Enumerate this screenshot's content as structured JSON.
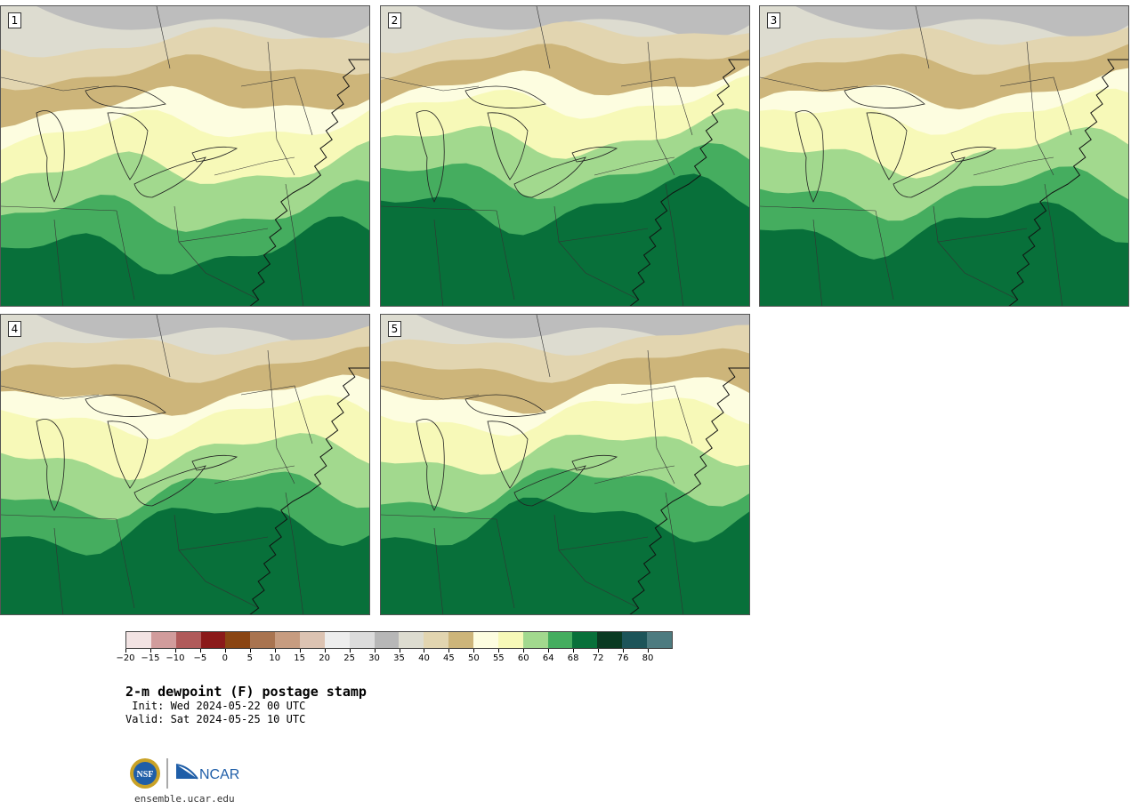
{
  "panels": [
    {
      "label": "1",
      "moisture": 0.35
    },
    {
      "label": "2",
      "moisture": 0.75
    },
    {
      "label": "3",
      "moisture": 0.55
    },
    {
      "label": "4",
      "moisture": 0.65
    },
    {
      "label": "5",
      "moisture": 0.7
    }
  ],
  "colorbar": {
    "colors": [
      "#f2e3e3",
      "#d19c9c",
      "#b05a5a",
      "#8b1a1a",
      "#8a4513",
      "#a97450",
      "#c79c80",
      "#dcc3b2",
      "#ededed",
      "#dcdcdc",
      "#b7b7b7",
      "#dddcd0",
      "#e2d5b0",
      "#cdb57a",
      "#fdfde0",
      "#f7f9b8",
      "#a2d98e",
      "#45ad5f",
      "#08703a",
      "#0a3a22",
      "#1d5459",
      "#4d7b80"
    ],
    "tick_labels": [
      "−20",
      "−15",
      "−10",
      "−5",
      "0",
      "5",
      "10",
      "15",
      "20",
      "25",
      "30",
      "35",
      "40",
      "45",
      "50",
      "55",
      "60",
      "64",
      "68",
      "72",
      "76",
      "80"
    ]
  },
  "title": "2-m dewpoint (F) postage stamp",
  "init_text": " Init: Wed 2024-05-22 00 UTC",
  "valid_text": "Valid: Sat 2024-05-25 10 UTC",
  "logo": {
    "nsf_text": "NSF",
    "ncar_text": "NCAR"
  },
  "website": "ensemble.ucar.edu"
}
